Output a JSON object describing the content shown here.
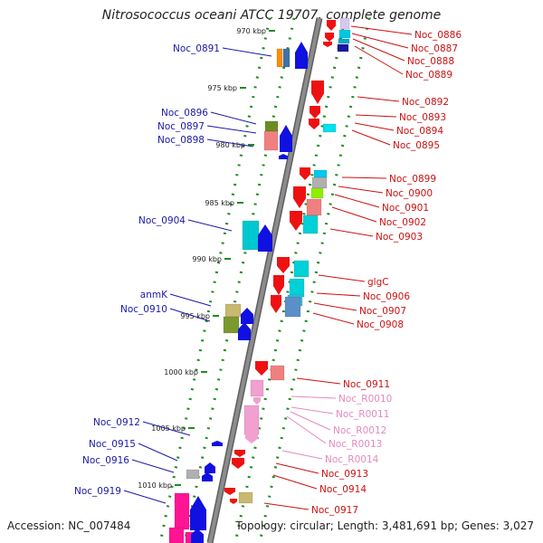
{
  "title": "Nitrosococcus oceani ATCC 19707, complete genome",
  "footer": {
    "accession": "Accession: NC_007484",
    "summary": "Topology: circular; Length: 3,481,691 bp; Genes: 3,027"
  },
  "colors": {
    "backbone": "#8c8c8c",
    "tick": "#228b22",
    "left_label": "#1a1aa6",
    "right_label": "#cc1111",
    "rna_label": "#e28ac0",
    "plus_strand_arrow": "#1010e0",
    "minus_strand_arrow": "#ee1111",
    "rna_arrow": "#f2a0cf"
  },
  "scale_labels": [
    "970 kbp",
    "975 kbp",
    "980 kbp",
    "985 kbp",
    "990 kbp",
    "995 kbp",
    "1000 kbp",
    "1005 kbp",
    "1010 kbp"
  ],
  "left_genes": [
    "Noc_0891",
    "Noc_0896",
    "Noc_0897",
    "Noc_0898",
    "Noc_0904",
    "anmK",
    "Noc_0910",
    "Noc_0912",
    "Noc_0915",
    "Noc_0916",
    "Noc_0919"
  ],
  "right_genes": [
    "Noc_0886",
    "Noc_0887",
    "Noc_0888",
    "Noc_0889",
    "Noc_0892",
    "Noc_0893",
    "Noc_0894",
    "Noc_0895",
    "Noc_0899",
    "Noc_0900",
    "Noc_0901",
    "Noc_0902",
    "Noc_0903",
    "glgC",
    "Noc_0906",
    "Noc_0907",
    "Noc_0908",
    "Noc_0911",
    "Noc_R0010",
    "Noc_R0011",
    "Noc_R0012",
    "Noc_R0013",
    "Noc_R0014",
    "Noc_0913",
    "Noc_0914",
    "Noc_0917"
  ],
  "rna_genes": [
    "Noc_R0010",
    "Noc_R0011",
    "Noc_R0012",
    "Noc_R0013",
    "Noc_R0014"
  ]
}
